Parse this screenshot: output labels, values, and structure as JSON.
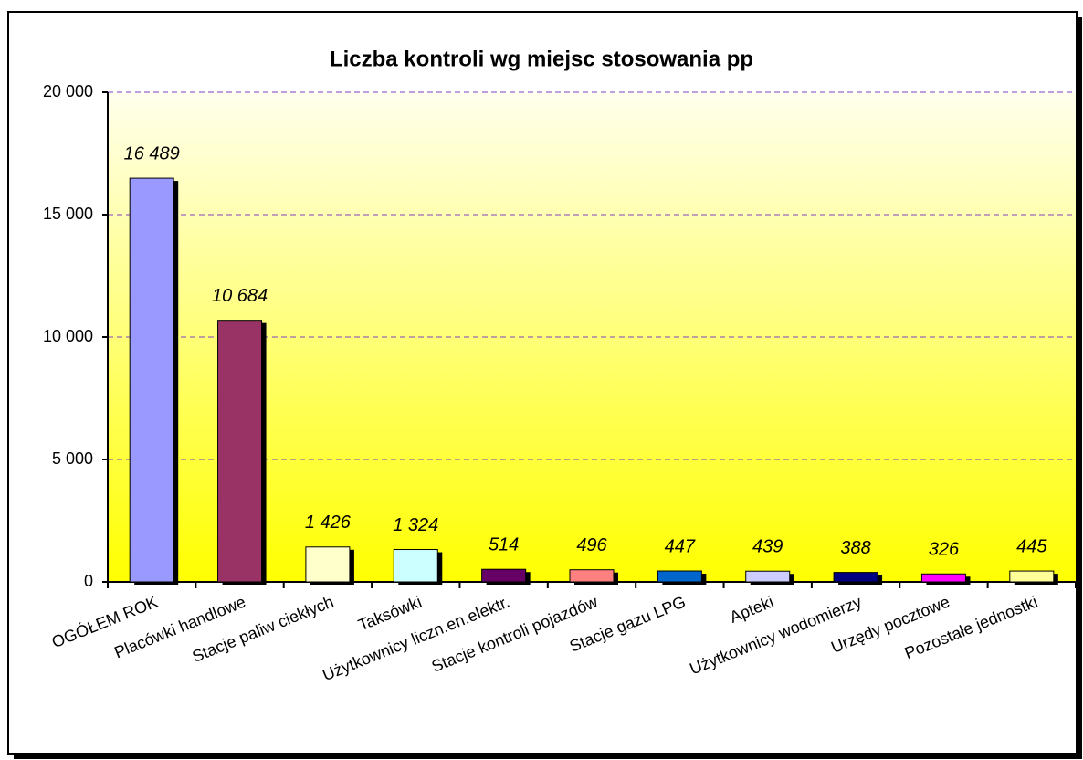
{
  "chart_data": {
    "type": "bar",
    "title": "Liczba kontroli wg miejsc stosowania pp",
    "categories": [
      "OGÓŁEM ROK",
      "Placówki handlowe",
      "Stacje paliw ciekłych",
      "Taksówki",
      "Użytkownicy liczn.en.elektr.",
      "Stacje kontroli pojazdów",
      "Stacje gazu LPG",
      "Apteki",
      "Użytkownicy wodomierzy",
      "Urzędy pocztowe",
      "Pozostałe jednostki"
    ],
    "values": [
      16489,
      10684,
      1426,
      1324,
      514,
      496,
      447,
      439,
      388,
      326,
      445
    ],
    "value_labels": [
      "16 489",
      "10 684",
      "1 426",
      "1 324",
      "514",
      "496",
      "447",
      "439",
      "388",
      "326",
      "445"
    ],
    "colors": [
      "#9999ff",
      "#993366",
      "#ffffcc",
      "#ccffff",
      "#660066",
      "#ff8080",
      "#0066cc",
      "#ccccff",
      "#000080",
      "#ff00ff",
      "#ffff99"
    ],
    "ylim": [
      0,
      20000
    ],
    "yticks": [
      0,
      {
        "value": 5000,
        "label": "5 000"
      },
      {
        "value": 10000,
        "label": "10 000"
      },
      {
        "value": 15000,
        "label": "15 000"
      },
      {
        "value": 20000,
        "label": "20 000"
      }
    ],
    "grid": true
  }
}
